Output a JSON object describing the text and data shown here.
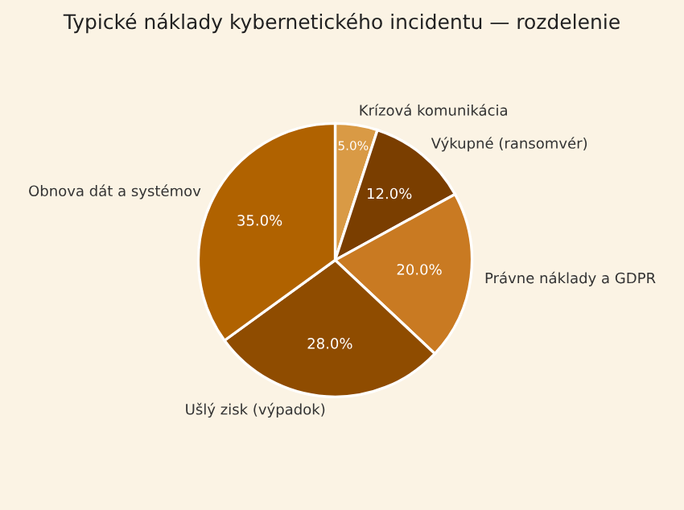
{
  "chart_data": {
    "type": "pie",
    "title": "Typické náklady kybernetického incidentu — rozdelenie",
    "categories": [
      "Krízová komunikácia",
      "Výkupné (ransomvér)",
      "Právne náklady a GDPR",
      "Ušlý zisk (výpadok)",
      "Obnova dát a systémov"
    ],
    "values": [
      5.0,
      12.0,
      20.0,
      28.0,
      35.0
    ],
    "value_labels": [
      "5.0%",
      "12.0%",
      "20.0%",
      "28.0%",
      "35.0%"
    ],
    "colors": [
      "#d99a45",
      "#7a3e00",
      "#c97a22",
      "#8f4c00",
      "#b06200"
    ],
    "legend": false
  }
}
